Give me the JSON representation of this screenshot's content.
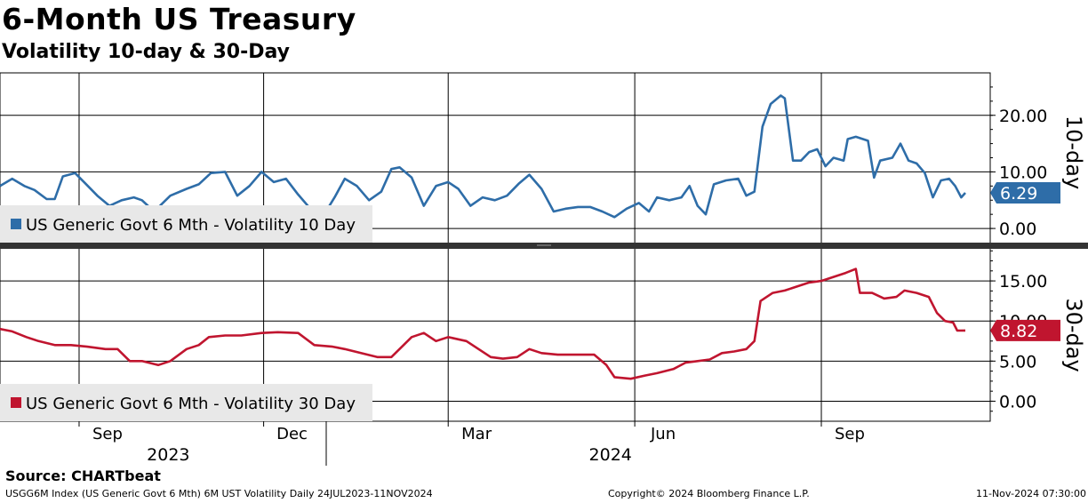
{
  "header": {
    "title": "6-Month US Treasury",
    "subtitle": "Volatility 10-day & 30-Day"
  },
  "footer": {
    "source": "Source: CHARTbeat",
    "index_info": "USGG6M Index (US Generic Govt 6 Mth) 6M UST Volatility  Daily 24JUL2023-11NOV2024",
    "copyright": "Copyright© 2024 Bloomberg Finance L.P.",
    "timestamp": "11-Nov-2024 07:30:00"
  },
  "x_axis": {
    "month_labels": [
      "Sep",
      "Dec",
      "Mar",
      "Jun",
      "Sep"
    ],
    "year_labels": [
      "2023",
      "2024"
    ]
  },
  "colors": {
    "series_10d": "#2e6da8",
    "series_30d": "#c0152f",
    "divider": "#333333",
    "legend_bg": "#e8e8e8"
  },
  "chart_data": [
    {
      "type": "line",
      "panel_label": "10-day",
      "x_range": [
        "2023-07-24",
        "2024-11-11"
      ],
      "ylim": [
        -2.5,
        27.5
      ],
      "y_ticks": [
        "20.00",
        "10.00",
        "0.00"
      ],
      "y_tick_values": [
        20,
        10,
        0
      ],
      "grid": true,
      "legend_position": "bottom-left",
      "last_value_label": "6.29",
      "series": [
        {
          "name": "US Generic Govt 6 Mth - Volatility 10 Day",
          "points": [
            [
              "2023-07-24",
              7.5
            ],
            [
              "2023-07-30",
              8.8
            ],
            [
              "2023-08-05",
              7.5
            ],
            [
              "2023-08-10",
              6.8
            ],
            [
              "2023-08-16",
              5.2
            ],
            [
              "2023-08-20",
              5.2
            ],
            [
              "2023-08-24",
              9.2
            ],
            [
              "2023-08-30",
              9.8
            ],
            [
              "2023-09-04",
              8.0
            ],
            [
              "2023-09-10",
              5.8
            ],
            [
              "2023-09-16",
              4.0
            ],
            [
              "2023-09-22",
              5.0
            ],
            [
              "2023-09-28",
              5.5
            ],
            [
              "2023-10-02",
              5.0
            ],
            [
              "2023-10-08",
              3.0
            ],
            [
              "2023-10-16",
              5.8
            ],
            [
              "2023-10-24",
              7.0
            ],
            [
              "2023-10-30",
              7.8
            ],
            [
              "2023-11-05",
              9.8
            ],
            [
              "2023-11-12",
              10.0
            ],
            [
              "2023-11-18",
              5.8
            ],
            [
              "2023-11-24",
              7.5
            ],
            [
              "2023-11-30",
              10.0
            ],
            [
              "2023-12-06",
              8.2
            ],
            [
              "2023-12-12",
              8.8
            ],
            [
              "2023-12-18",
              6.0
            ],
            [
              "2023-12-24",
              3.5
            ],
            [
              "2023-12-30",
              2.0
            ],
            [
              "2024-01-05",
              5.5
            ],
            [
              "2024-01-10",
              8.8
            ],
            [
              "2024-01-16",
              7.5
            ],
            [
              "2024-01-22",
              5.0
            ],
            [
              "2024-01-28",
              6.5
            ],
            [
              "2024-02-02",
              10.5
            ],
            [
              "2024-02-06",
              10.8
            ],
            [
              "2024-02-12",
              9.0
            ],
            [
              "2024-02-18",
              4.0
            ],
            [
              "2024-02-24",
              7.5
            ],
            [
              "2024-03-01",
              8.2
            ],
            [
              "2024-03-06",
              7.0
            ],
            [
              "2024-03-12",
              4.0
            ],
            [
              "2024-03-18",
              5.5
            ],
            [
              "2024-03-24",
              5.0
            ],
            [
              "2024-03-30",
              5.8
            ],
            [
              "2024-04-05",
              8.0
            ],
            [
              "2024-04-10",
              9.5
            ],
            [
              "2024-04-16",
              7.0
            ],
            [
              "2024-04-22",
              3.0
            ],
            [
              "2024-04-28",
              3.5
            ],
            [
              "2024-05-04",
              3.8
            ],
            [
              "2024-05-10",
              3.8
            ],
            [
              "2024-05-16",
              3.0
            ],
            [
              "2024-05-22",
              2.0
            ],
            [
              "2024-05-28",
              3.5
            ],
            [
              "2024-06-03",
              4.5
            ],
            [
              "2024-06-08",
              3.0
            ],
            [
              "2024-06-12",
              5.5
            ],
            [
              "2024-06-18",
              5.0
            ],
            [
              "2024-06-24",
              5.5
            ],
            [
              "2024-06-28",
              7.5
            ],
            [
              "2024-07-02",
              4.0
            ],
            [
              "2024-07-06",
              2.5
            ],
            [
              "2024-07-10",
              7.8
            ],
            [
              "2024-07-16",
              8.5
            ],
            [
              "2024-07-22",
              8.8
            ],
            [
              "2024-07-26",
              5.8
            ],
            [
              "2024-07-30",
              6.5
            ],
            [
              "2024-08-03",
              18.0
            ],
            [
              "2024-08-07",
              22.0
            ],
            [
              "2024-08-12",
              23.5
            ],
            [
              "2024-08-14",
              23.0
            ],
            [
              "2024-08-18",
              12.0
            ],
            [
              "2024-08-22",
              12.0
            ],
            [
              "2024-08-26",
              13.5
            ],
            [
              "2024-08-30",
              14.0
            ],
            [
              "2024-09-03",
              11.0
            ],
            [
              "2024-09-07",
              12.5
            ],
            [
              "2024-09-12",
              12.0
            ],
            [
              "2024-09-14",
              15.8
            ],
            [
              "2024-09-18",
              16.2
            ],
            [
              "2024-09-24",
              15.5
            ],
            [
              "2024-09-27",
              9.0
            ],
            [
              "2024-09-30",
              12.0
            ],
            [
              "2024-10-06",
              12.5
            ],
            [
              "2024-10-10",
              15.0
            ],
            [
              "2024-10-14",
              12.0
            ],
            [
              "2024-10-18",
              11.5
            ],
            [
              "2024-10-22",
              9.8
            ],
            [
              "2024-10-26",
              5.5
            ],
            [
              "2024-10-30",
              8.5
            ],
            [
              "2024-11-03",
              8.8
            ],
            [
              "2024-11-06",
              7.5
            ],
            [
              "2024-11-09",
              5.5
            ],
            [
              "2024-11-11",
              6.29
            ]
          ]
        }
      ]
    },
    {
      "type": "line",
      "panel_label": "30-day",
      "x_range": [
        "2023-07-24",
        "2024-11-11"
      ],
      "ylim": [
        -2.5,
        19.0
      ],
      "y_ticks": [
        "15.00",
        "10.00",
        "5.00",
        "0.00"
      ],
      "y_tick_values": [
        15,
        10,
        5,
        0
      ],
      "grid": true,
      "legend_position": "bottom-left",
      "last_value_label": "8.82",
      "series": [
        {
          "name": "US Generic Govt 6 Mth - Volatility 30 Day",
          "points": [
            [
              "2023-07-24",
              9.0
            ],
            [
              "2023-07-30",
              8.7
            ],
            [
              "2023-08-06",
              8.0
            ],
            [
              "2023-08-12",
              7.5
            ],
            [
              "2023-08-20",
              7.0
            ],
            [
              "2023-08-28",
              7.0
            ],
            [
              "2023-09-05",
              6.8
            ],
            [
              "2023-09-14",
              6.5
            ],
            [
              "2023-09-20",
              6.5
            ],
            [
              "2023-09-26",
              5.0
            ],
            [
              "2023-10-02",
              5.0
            ],
            [
              "2023-10-10",
              4.5
            ],
            [
              "2023-10-16",
              5.0
            ],
            [
              "2023-10-24",
              6.5
            ],
            [
              "2023-10-30",
              7.0
            ],
            [
              "2023-11-04",
              8.0
            ],
            [
              "2023-11-12",
              8.2
            ],
            [
              "2023-11-20",
              8.2
            ],
            [
              "2023-11-30",
              8.5
            ],
            [
              "2023-12-08",
              8.6
            ],
            [
              "2023-12-18",
              8.5
            ],
            [
              "2023-12-26",
              7.0
            ],
            [
              "2024-01-04",
              6.8
            ],
            [
              "2024-01-10",
              6.5
            ],
            [
              "2024-01-18",
              6.0
            ],
            [
              "2024-01-26",
              5.5
            ],
            [
              "2024-02-02",
              5.5
            ],
            [
              "2024-02-08",
              7.0
            ],
            [
              "2024-02-12",
              8.0
            ],
            [
              "2024-02-18",
              8.5
            ],
            [
              "2024-02-24",
              7.5
            ],
            [
              "2024-03-01",
              8.0
            ],
            [
              "2024-03-10",
              7.5
            ],
            [
              "2024-03-16",
              6.5
            ],
            [
              "2024-03-22",
              5.5
            ],
            [
              "2024-03-28",
              5.3
            ],
            [
              "2024-04-04",
              5.5
            ],
            [
              "2024-04-10",
              6.5
            ],
            [
              "2024-04-16",
              6.0
            ],
            [
              "2024-04-24",
              5.8
            ],
            [
              "2024-05-04",
              5.8
            ],
            [
              "2024-05-12",
              5.8
            ],
            [
              "2024-05-18",
              4.5
            ],
            [
              "2024-05-22",
              3.0
            ],
            [
              "2024-05-30",
              2.8
            ],
            [
              "2024-06-06",
              3.2
            ],
            [
              "2024-06-12",
              3.5
            ],
            [
              "2024-06-20",
              4.0
            ],
            [
              "2024-06-26",
              4.8
            ],
            [
              "2024-07-02",
              5.0
            ],
            [
              "2024-07-08",
              5.2
            ],
            [
              "2024-07-14",
              6.0
            ],
            [
              "2024-07-20",
              6.2
            ],
            [
              "2024-07-26",
              6.5
            ],
            [
              "2024-07-30",
              7.5
            ],
            [
              "2024-08-02",
              12.5
            ],
            [
              "2024-08-08",
              13.5
            ],
            [
              "2024-08-14",
              13.8
            ],
            [
              "2024-08-20",
              14.3
            ],
            [
              "2024-08-26",
              14.8
            ],
            [
              "2024-09-01",
              15.0
            ],
            [
              "2024-09-07",
              15.5
            ],
            [
              "2024-09-13",
              16.0
            ],
            [
              "2024-09-18",
              16.5
            ],
            [
              "2024-09-20",
              13.5
            ],
            [
              "2024-09-26",
              13.5
            ],
            [
              "2024-10-02",
              12.8
            ],
            [
              "2024-10-08",
              13.0
            ],
            [
              "2024-10-12",
              13.8
            ],
            [
              "2024-10-18",
              13.5
            ],
            [
              "2024-10-24",
              13.0
            ],
            [
              "2024-10-28",
              11.0
            ],
            [
              "2024-11-01",
              10.0
            ],
            [
              "2024-11-05",
              9.8
            ],
            [
              "2024-11-07",
              8.8
            ],
            [
              "2024-11-11",
              8.82
            ]
          ]
        }
      ]
    }
  ]
}
